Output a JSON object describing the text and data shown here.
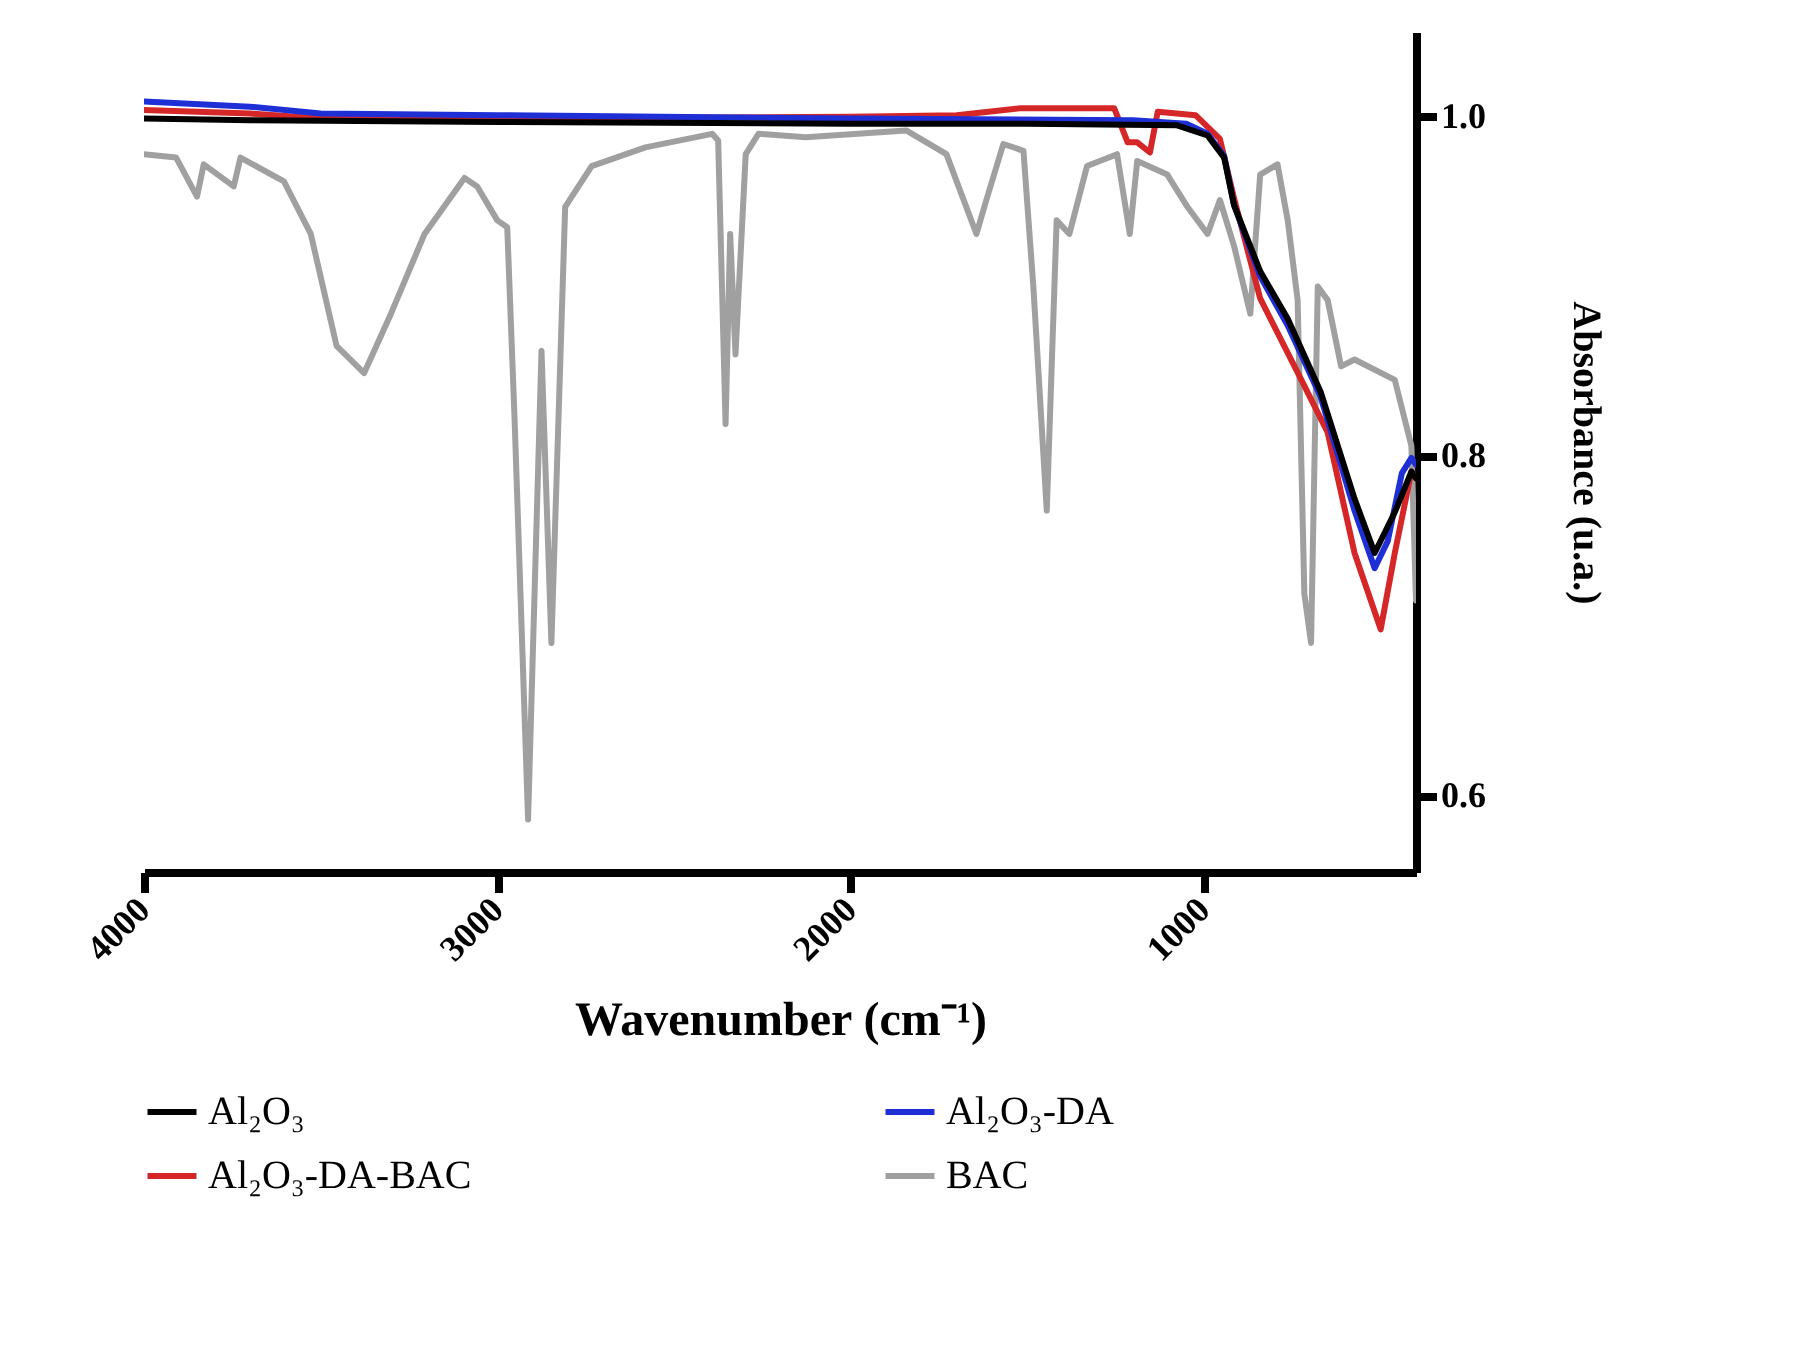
{
  "chart_data": {
    "type": "line",
    "xlabel": "Wavenumber (cm⁻¹)",
    "ylabel": "Absorbance (u.a.)",
    "xlim": [
      4000,
      400
    ],
    "xticks": [
      4000,
      3000,
      2000,
      1000
    ],
    "ylim": [
      0.555,
      1.05
    ],
    "yticks": [
      0.6,
      0.8,
      {
        "value": 1.0,
        "label": "1.0"
      }
    ],
    "grid": false,
    "legend": "bottom",
    "marker": "none",
    "line_style": "solid",
    "series": [
      {
        "name": "Al₂O₃",
        "color": "#000000",
        "x": [
          4000,
          3700,
          3000,
          2000,
          1500,
          1076,
          990,
          943,
          915,
          841,
          763,
          670,
          574,
          517,
          460,
          413,
          400
        ],
        "values": [
          0.999,
          0.998,
          0.997,
          0.996,
          0.996,
          0.995,
          0.989,
          0.976,
          0.948,
          0.909,
          0.881,
          0.838,
          0.775,
          0.743,
          0.767,
          0.791,
          0.787
        ]
      },
      {
        "name": "Al₂O₃-DA",
        "color": "#1f2fd6",
        "x": [
          4000,
          3700,
          3500,
          3000,
          2000,
          1200,
          1050,
          990,
          943,
          915,
          841,
          763,
          670,
          574,
          517,
          480,
          440,
          413,
          400
        ],
        "values": [
          1.009,
          1.006,
          1.002,
          1.001,
          0.999,
          0.998,
          0.996,
          0.99,
          0.977,
          0.948,
          0.906,
          0.877,
          0.835,
          0.768,
          0.734,
          0.75,
          0.79,
          0.799,
          0.795
        ]
      },
      {
        "name": "Al₂O₃-DA-BAC",
        "color": "#d62728",
        "x": [
          4000,
          3700,
          3500,
          3000,
          2000,
          1700,
          1523,
          1254,
          1216,
          1189,
          1153,
          1131,
          1024,
          955,
          915,
          841,
          727,
          650,
          574,
          500,
          460,
          413,
          400
        ],
        "values": [
          1.004,
          1.002,
          0.999,
          0.999,
          1.0,
          1.001,
          1.005,
          1.005,
          0.985,
          0.985,
          0.979,
          1.003,
          1.001,
          0.987,
          0.952,
          0.893,
          0.846,
          0.814,
          0.743,
          0.698,
          0.743,
          0.791,
          0.787
        ]
      },
      {
        "name": "BAC",
        "color": "#a0a0a0",
        "x": [
          4000,
          3909,
          3850,
          3831,
          3746,
          3727,
          3604,
          3528,
          3455,
          3377,
          3301,
          3206,
          3093,
          3057,
          3000,
          2972,
          2951,
          2913,
          2875,
          2847,
          2808,
          2733,
          2581,
          2392,
          2375,
          2354,
          2341,
          2326,
          2297,
          2261,
          2127,
          1843,
          1729,
          1644,
          1616,
          1568,
          1511,
          1483,
          1445,
          1417,
          1381,
          1331,
          1246,
          1210,
          1189,
          1104,
          1047,
          990,
          955,
          915,
          869,
          841,
          792,
          763,
          735,
          716,
          697,
          678,
          650,
          612,
          574,
          460,
          413,
          400
        ],
        "values": [
          0.978,
          0.976,
          0.953,
          0.972,
          0.959,
          0.976,
          0.962,
          0.931,
          0.865,
          0.849,
          0.884,
          0.931,
          0.964,
          0.959,
          0.939,
          0.935,
          0.821,
          0.586,
          0.862,
          0.69,
          0.947,
          0.971,
          0.982,
          0.99,
          0.986,
          0.819,
          0.931,
          0.86,
          0.978,
          0.99,
          0.988,
          0.992,
          0.978,
          0.931,
          0.951,
          0.984,
          0.98,
          0.9,
          0.768,
          0.939,
          0.931,
          0.971,
          0.978,
          0.931,
          0.974,
          0.966,
          0.947,
          0.931,
          0.951,
          0.924,
          0.884,
          0.966,
          0.972,
          0.939,
          0.892,
          0.719,
          0.69,
          0.9,
          0.892,
          0.853,
          0.857,
          0.845,
          0.806,
          0.715
        ]
      }
    ]
  }
}
